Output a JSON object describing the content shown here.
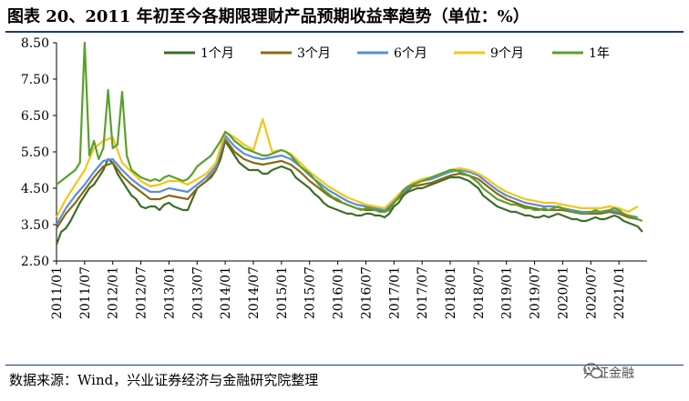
{
  "header": {
    "title": "图表 20、2011 年初至今各期限理财产品预期收益率趋势（单位：%）"
  },
  "footer": {
    "source": "数据来源：Wind，兴业证券经济与金融研究院整理",
    "watermark": "兴证金融"
  },
  "chart_data": {
    "type": "line",
    "title": "",
    "xlabel": "",
    "ylabel": "",
    "ylim": [
      2.5,
      8.5
    ],
    "yticks": [
      "2.50",
      "3.50",
      "4.50",
      "5.50",
      "6.50",
      "7.50",
      "8.50"
    ],
    "xtick_labels": [
      "2011/01",
      "2011/07",
      "2012/01",
      "2012/07",
      "2013/01",
      "2013/07",
      "2014/01",
      "2014/07",
      "2015/01",
      "2015/07",
      "2016/01",
      "2016/07",
      "2017/01",
      "2017/07",
      "2018/01",
      "2018/07",
      "2019/01",
      "2019/07",
      "2020/01",
      "2020/07",
      "2021/01"
    ],
    "legend_position": "top",
    "grid": false,
    "series": [
      {
        "name": "1个月",
        "color": "#3c6e2a",
        "x": [
          "2011/01",
          "2011/02",
          "2011/03",
          "2011/04",
          "2011/05",
          "2011/06",
          "2011/07",
          "2011/08",
          "2011/09",
          "2011/10",
          "2011/11",
          "2011/12",
          "2012/01",
          "2012/02",
          "2012/03",
          "2012/04",
          "2012/05",
          "2012/06",
          "2012/07",
          "2012/08",
          "2012/09",
          "2012/10",
          "2012/11",
          "2012/12",
          "2013/01",
          "2013/02",
          "2013/03",
          "2013/04",
          "2013/05",
          "2013/06",
          "2013/07",
          "2013/08",
          "2013/09",
          "2013/10",
          "2013/11",
          "2013/12",
          "2014/01",
          "2014/02",
          "2014/03",
          "2014/04",
          "2014/05",
          "2014/06",
          "2014/07",
          "2014/08",
          "2014/09",
          "2014/10",
          "2014/11",
          "2014/12",
          "2015/01",
          "2015/02",
          "2015/03",
          "2015/04",
          "2015/05",
          "2015/06",
          "2015/07",
          "2015/08",
          "2015/09",
          "2015/10",
          "2015/11",
          "2015/12",
          "2016/01",
          "2016/02",
          "2016/03",
          "2016/04",
          "2016/05",
          "2016/06",
          "2016/07",
          "2016/08",
          "2016/09",
          "2016/10",
          "2016/11",
          "2016/12",
          "2017/01",
          "2017/02",
          "2017/03",
          "2017/04",
          "2017/05",
          "2017/06",
          "2017/07",
          "2017/08",
          "2017/09",
          "2017/10",
          "2017/11",
          "2017/12",
          "2018/01",
          "2018/02",
          "2018/03",
          "2018/04",
          "2018/05",
          "2018/06",
          "2018/07",
          "2018/08",
          "2018/09",
          "2018/10",
          "2018/11",
          "2018/12",
          "2019/01",
          "2019/02",
          "2019/03",
          "2019/04",
          "2019/05",
          "2019/06",
          "2019/07",
          "2019/08",
          "2019/09",
          "2019/10",
          "2019/11",
          "2019/12",
          "2020/01",
          "2020/02",
          "2020/03",
          "2020/04",
          "2020/05",
          "2020/06",
          "2020/07",
          "2020/08",
          "2020/09",
          "2020/10",
          "2020/11",
          "2020/12",
          "2021/01",
          "2021/02",
          "2021/03",
          "2021/04",
          "2021/05",
          "2021/06"
        ],
        "values": [
          2.95,
          3.3,
          3.4,
          3.6,
          3.85,
          4.1,
          4.3,
          4.5,
          4.6,
          4.8,
          5.0,
          5.3,
          5.2,
          4.9,
          4.7,
          4.5,
          4.3,
          4.2,
          4.0,
          3.95,
          4.0,
          4.0,
          3.9,
          4.05,
          4.1,
          4.0,
          3.95,
          3.9,
          3.9,
          4.2,
          4.5,
          4.6,
          4.7,
          4.8,
          5.0,
          5.3,
          5.8,
          5.6,
          5.4,
          5.2,
          5.1,
          5.0,
          5.0,
          5.0,
          4.9,
          4.9,
          5.0,
          5.05,
          5.1,
          5.05,
          5.0,
          4.8,
          4.7,
          4.6,
          4.5,
          4.35,
          4.25,
          4.1,
          4.0,
          3.95,
          3.9,
          3.85,
          3.8,
          3.8,
          3.75,
          3.75,
          3.8,
          3.8,
          3.75,
          3.75,
          3.7,
          3.8,
          4.0,
          4.1,
          4.3,
          4.4,
          4.45,
          4.5,
          4.5,
          4.55,
          4.6,
          4.65,
          4.7,
          4.75,
          4.8,
          4.8,
          4.8,
          4.75,
          4.7,
          4.6,
          4.5,
          4.3,
          4.2,
          4.1,
          4.0,
          3.95,
          3.9,
          3.85,
          3.85,
          3.8,
          3.75,
          3.75,
          3.7,
          3.7,
          3.75,
          3.7,
          3.75,
          3.8,
          3.75,
          3.7,
          3.65,
          3.65,
          3.6,
          3.6,
          3.65,
          3.7,
          3.65,
          3.65,
          3.7,
          3.75,
          3.7,
          3.6,
          3.55,
          3.5,
          3.45,
          3.3
        ]
      },
      {
        "name": "3个月",
        "color": "#8a6a12",
        "x": [
          "2011/01",
          "2011/03",
          "2011/05",
          "2011/07",
          "2011/09",
          "2011/11",
          "2012/01",
          "2012/03",
          "2012/05",
          "2012/07",
          "2012/09",
          "2012/11",
          "2013/01",
          "2013/03",
          "2013/05",
          "2013/07",
          "2013/09",
          "2013/11",
          "2014/01",
          "2014/03",
          "2014/05",
          "2014/07",
          "2014/09",
          "2014/11",
          "2015/01",
          "2015/03",
          "2015/05",
          "2015/07",
          "2015/09",
          "2015/11",
          "2016/01",
          "2016/03",
          "2016/05",
          "2016/07",
          "2016/09",
          "2016/11",
          "2017/01",
          "2017/03",
          "2017/05",
          "2017/07",
          "2017/09",
          "2017/11",
          "2018/01",
          "2018/03",
          "2018/05",
          "2018/07",
          "2018/09",
          "2018/11",
          "2019/01",
          "2019/03",
          "2019/05",
          "2019/07",
          "2019/09",
          "2019/11",
          "2020/01",
          "2020/03",
          "2020/05",
          "2020/07",
          "2020/09",
          "2020/11",
          "2021/01",
          "2021/03",
          "2021/05"
        ],
        "values": [
          3.4,
          3.8,
          4.1,
          4.45,
          4.8,
          5.1,
          5.2,
          4.85,
          4.6,
          4.4,
          4.2,
          4.2,
          4.3,
          4.25,
          4.2,
          4.5,
          4.7,
          5.0,
          5.85,
          5.5,
          5.3,
          5.2,
          5.15,
          5.2,
          5.25,
          5.15,
          4.95,
          4.7,
          4.5,
          4.3,
          4.15,
          4.05,
          3.95,
          3.9,
          3.9,
          3.85,
          4.1,
          4.35,
          4.55,
          4.6,
          4.65,
          4.75,
          4.85,
          4.9,
          4.85,
          4.75,
          4.55,
          4.35,
          4.2,
          4.1,
          4.0,
          3.95,
          3.9,
          3.9,
          3.9,
          3.85,
          3.8,
          3.8,
          3.8,
          3.85,
          3.8,
          3.7,
          3.65
        ]
      },
      {
        "name": "6个月",
        "color": "#5a8ed6",
        "x": [
          "2011/01",
          "2011/03",
          "2011/05",
          "2011/07",
          "2011/09",
          "2011/11",
          "2012/01",
          "2012/03",
          "2012/05",
          "2012/07",
          "2012/09",
          "2012/11",
          "2013/01",
          "2013/03",
          "2013/05",
          "2013/07",
          "2013/09",
          "2013/11",
          "2014/01",
          "2014/03",
          "2014/05",
          "2014/07",
          "2014/09",
          "2014/11",
          "2015/01",
          "2015/03",
          "2015/05",
          "2015/07",
          "2015/09",
          "2015/11",
          "2016/01",
          "2016/03",
          "2016/05",
          "2016/07",
          "2016/09",
          "2016/11",
          "2017/01",
          "2017/03",
          "2017/05",
          "2017/07",
          "2017/09",
          "2017/11",
          "2018/01",
          "2018/03",
          "2018/05",
          "2018/07",
          "2018/09",
          "2018/11",
          "2019/01",
          "2019/03",
          "2019/05",
          "2019/07",
          "2019/09",
          "2019/11",
          "2020/01",
          "2020/03",
          "2020/05",
          "2020/07",
          "2020/09",
          "2020/11",
          "2021/01",
          "2021/03",
          "2021/05"
        ],
        "values": [
          3.5,
          3.95,
          4.3,
          4.6,
          4.95,
          5.25,
          5.3,
          5.0,
          4.75,
          4.55,
          4.4,
          4.4,
          4.5,
          4.45,
          4.4,
          4.6,
          4.8,
          5.1,
          5.95,
          5.65,
          5.45,
          5.35,
          5.3,
          5.35,
          5.4,
          5.3,
          5.1,
          4.85,
          4.65,
          4.45,
          4.3,
          4.15,
          4.05,
          4.0,
          3.95,
          3.9,
          4.15,
          4.4,
          4.6,
          4.7,
          4.75,
          4.85,
          4.95,
          5.0,
          4.95,
          4.85,
          4.65,
          4.45,
          4.3,
          4.2,
          4.1,
          4.05,
          4.0,
          4.0,
          3.95,
          3.9,
          3.85,
          3.85,
          3.85,
          3.9,
          3.85,
          3.75,
          3.7
        ]
      },
      {
        "name": "9个月",
        "color": "#f5c518",
        "x": [
          "2011/01",
          "2011/03",
          "2011/05",
          "2011/07",
          "2011/09",
          "2011/11",
          "2012/01",
          "2012/03",
          "2012/05",
          "2012/07",
          "2012/09",
          "2012/11",
          "2013/01",
          "2013/03",
          "2013/05",
          "2013/07",
          "2013/09",
          "2013/11",
          "2014/01",
          "2014/03",
          "2014/05",
          "2014/07",
          "2014/09",
          "2014/11",
          "2015/01",
          "2015/03",
          "2015/05",
          "2015/07",
          "2015/09",
          "2015/11",
          "2016/01",
          "2016/03",
          "2016/05",
          "2016/07",
          "2016/09",
          "2016/11",
          "2017/01",
          "2017/03",
          "2017/05",
          "2017/07",
          "2017/09",
          "2017/11",
          "2018/01",
          "2018/03",
          "2018/05",
          "2018/07",
          "2018/09",
          "2018/11",
          "2019/01",
          "2019/03",
          "2019/05",
          "2019/07",
          "2019/09",
          "2019/11",
          "2020/01",
          "2020/03",
          "2020/05",
          "2020/07",
          "2020/09",
          "2020/11",
          "2021/01",
          "2021/03",
          "2021/05"
        ],
        "values": [
          3.7,
          4.2,
          4.6,
          5.0,
          5.6,
          5.8,
          5.9,
          5.2,
          4.95,
          4.7,
          4.55,
          4.6,
          4.7,
          4.7,
          4.6,
          4.75,
          4.9,
          5.2,
          6.05,
          5.9,
          5.7,
          5.55,
          6.4,
          5.5,
          5.55,
          5.45,
          5.2,
          4.95,
          4.75,
          4.55,
          4.4,
          4.25,
          4.15,
          4.05,
          4.0,
          3.95,
          4.2,
          4.45,
          4.65,
          4.75,
          4.8,
          4.9,
          5.0,
          5.05,
          5.0,
          4.9,
          4.75,
          4.55,
          4.4,
          4.3,
          4.2,
          4.15,
          4.1,
          4.1,
          4.05,
          4.0,
          3.95,
          3.95,
          3.95,
          4.0,
          3.95,
          3.85,
          4.0
        ]
      },
      {
        "name": "1年",
        "color": "#5aa02c",
        "x": [
          "2011/01",
          "2011/02",
          "2011/03",
          "2011/04",
          "2011/05",
          "2011/06",
          "2011/07",
          "2011/08",
          "2011/09",
          "2011/10",
          "2011/11",
          "2011/12",
          "2012/01",
          "2012/02",
          "2012/03",
          "2012/04",
          "2012/05",
          "2012/06",
          "2012/07",
          "2012/08",
          "2012/09",
          "2012/10",
          "2012/11",
          "2012/12",
          "2013/01",
          "2013/02",
          "2013/03",
          "2013/04",
          "2013/05",
          "2013/06",
          "2013/07",
          "2013/08",
          "2013/09",
          "2013/10",
          "2013/11",
          "2013/12",
          "2014/01",
          "2014/02",
          "2014/03",
          "2014/04",
          "2014/05",
          "2014/06",
          "2014/07",
          "2014/08",
          "2014/09",
          "2014/10",
          "2014/11",
          "2014/12",
          "2015/01",
          "2015/02",
          "2015/03",
          "2015/04",
          "2015/05",
          "2015/06",
          "2015/07",
          "2015/08",
          "2015/09",
          "2015/10",
          "2015/11",
          "2015/12",
          "2016/01",
          "2016/02",
          "2016/03",
          "2016/04",
          "2016/05",
          "2016/06",
          "2016/07",
          "2016/08",
          "2016/09",
          "2016/10",
          "2016/11",
          "2016/12",
          "2017/01",
          "2017/02",
          "2017/03",
          "2017/04",
          "2017/05",
          "2017/06",
          "2017/07",
          "2017/08",
          "2017/09",
          "2017/10",
          "2017/11",
          "2017/12",
          "2018/01",
          "2018/02",
          "2018/03",
          "2018/04",
          "2018/05",
          "2018/06",
          "2018/07",
          "2018/08",
          "2018/09",
          "2018/10",
          "2018/11",
          "2018/12",
          "2019/01",
          "2019/02",
          "2019/03",
          "2019/04",
          "2019/05",
          "2019/06",
          "2019/07",
          "2019/08",
          "2019/09",
          "2019/10",
          "2019/11",
          "2019/12",
          "2020/01",
          "2020/02",
          "2020/03",
          "2020/04",
          "2020/05",
          "2020/06",
          "2020/07",
          "2020/08",
          "2020/09",
          "2020/10",
          "2020/11",
          "2020/12",
          "2021/01",
          "2021/02",
          "2021/03",
          "2021/04",
          "2021/05",
          "2021/06"
        ],
        "values": [
          4.6,
          4.7,
          4.8,
          4.9,
          5.0,
          5.2,
          8.5,
          5.4,
          5.8,
          5.3,
          5.6,
          7.2,
          5.6,
          5.7,
          7.15,
          5.4,
          5.0,
          4.9,
          4.8,
          4.75,
          4.7,
          4.75,
          4.7,
          4.8,
          4.85,
          4.8,
          4.75,
          4.7,
          4.75,
          4.9,
          5.1,
          5.2,
          5.3,
          5.4,
          5.6,
          5.8,
          6.05,
          5.95,
          5.8,
          5.7,
          5.6,
          5.55,
          5.5,
          5.45,
          5.4,
          5.4,
          5.45,
          5.5,
          5.55,
          5.5,
          5.4,
          5.25,
          5.1,
          5.0,
          4.9,
          4.75,
          4.6,
          4.45,
          4.35,
          4.25,
          4.2,
          4.1,
          4.05,
          4.0,
          3.95,
          3.9,
          3.95,
          3.95,
          3.9,
          3.85,
          3.85,
          3.9,
          4.1,
          4.25,
          4.45,
          4.55,
          4.6,
          4.65,
          4.7,
          4.75,
          4.8,
          4.85,
          4.9,
          4.95,
          5.0,
          5.0,
          4.95,
          4.9,
          4.85,
          4.75,
          4.65,
          4.5,
          4.4,
          4.3,
          4.2,
          4.15,
          4.1,
          4.05,
          4.05,
          4.0,
          3.95,
          3.95,
          3.9,
          3.9,
          3.95,
          3.9,
          3.95,
          4.0,
          3.95,
          3.9,
          3.85,
          3.85,
          3.8,
          3.8,
          3.85,
          3.9,
          3.85,
          3.85,
          3.9,
          3.95,
          3.9,
          3.8,
          3.75,
          3.7,
          3.65,
          3.6
        ]
      }
    ]
  }
}
